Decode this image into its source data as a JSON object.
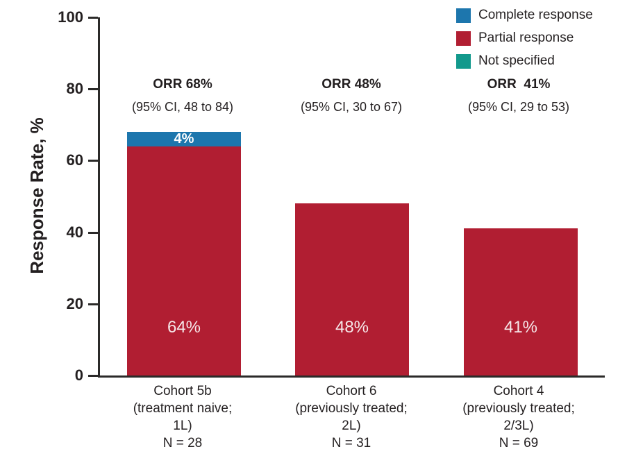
{
  "chart_data": {
    "type": "bar",
    "subtype": "stacked",
    "title": "",
    "xlabel": "",
    "ylabel": "Response Rate, %",
    "ylim": [
      0,
      100
    ],
    "yticks": [
      0,
      20,
      40,
      60,
      80,
      100
    ],
    "grid": false,
    "legend_position": "top-right",
    "legend": [
      {
        "label": "Complete response",
        "color": "#1d76ad"
      },
      {
        "label": "Partial response",
        "color": "#b11e32"
      },
      {
        "label": "Not specified",
        "color": "#12998c"
      }
    ],
    "series": [
      {
        "name": "Complete response",
        "values": [
          4,
          0,
          0
        ]
      },
      {
        "name": "Partial response",
        "values": [
          64,
          48,
          41
        ]
      },
      {
        "name": "Not specified",
        "values": [
          0,
          0,
          0
        ]
      }
    ],
    "categories": [
      "Cohort 5b (treatment naive; 1L) N = 28",
      "Cohort 6 (previously treated; 2L) N = 31",
      "Cohort 4 (previously treated; 2/3L) N = 69"
    ],
    "bars": [
      {
        "orr": "ORR 68%",
        "ci": "(95% CI, 48 to 84)",
        "complete": 4,
        "partial": 64,
        "complete_label": "4%",
        "partial_label": "64%",
        "category_lines": [
          "Cohort 5b",
          "(treatment naive;",
          "1L)",
          "N = 28"
        ]
      },
      {
        "orr": "ORR 48%",
        "ci": "(95% CI, 30 to 67)",
        "complete": 0,
        "partial": 48,
        "complete_label": "",
        "partial_label": "48%",
        "category_lines": [
          "Cohort 6",
          "(previously treated;",
          "2L)",
          "N = 31"
        ]
      },
      {
        "orr": "ORR  41%",
        "ci": "(95% CI, 29 to 53)",
        "complete": 0,
        "partial": 41,
        "complete_label": "",
        "partial_label": "41%",
        "category_lines": [
          "Cohort 4",
          "(previously treated;",
          "2/3L)",
          "N = 69"
        ]
      }
    ],
    "colors": {
      "axis": "#2b2a29",
      "text": "#231f20",
      "bar_value_text": "#f6e7e9"
    }
  }
}
